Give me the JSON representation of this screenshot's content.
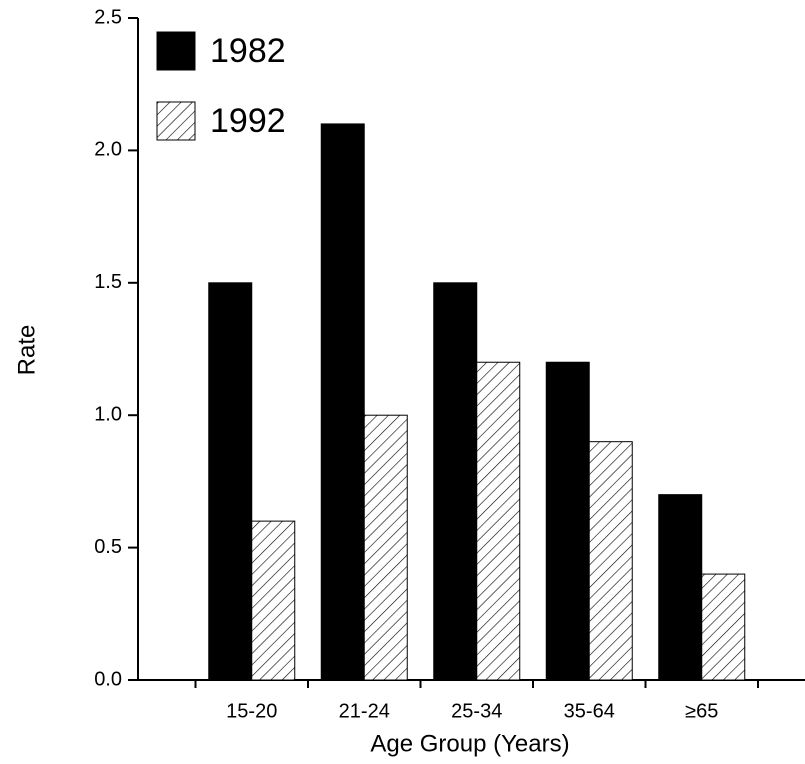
{
  "chart_data": {
    "type": "bar",
    "x_label": "Age Group (Years)",
    "y_label": "Rate",
    "categories": [
      "15-20",
      "21-24",
      "25-34",
      "35-64",
      "≥65"
    ],
    "series": [
      {
        "name": "1982",
        "color": "#000000",
        "values": [
          1.5,
          2.1,
          1.5,
          1.2,
          0.7
        ]
      },
      {
        "name": "1992",
        "color": "#ffffff",
        "pattern": "hatch",
        "values": [
          0.6,
          1.0,
          1.2,
          0.9,
          0.4
        ]
      }
    ],
    "ylim": [
      0,
      2.5
    ],
    "yticks": [
      {
        "value": 0,
        "label": "0.0"
      },
      {
        "value": 0.5,
        "label": "0.5"
      },
      {
        "value": 1,
        "label": "1.0"
      },
      {
        "value": 1.5,
        "label": "1.5"
      },
      {
        "value": 2,
        "label": "2.0"
      },
      {
        "value": 2.5,
        "label": "2.5"
      }
    ],
    "grid": false,
    "legend": "upper left"
  }
}
